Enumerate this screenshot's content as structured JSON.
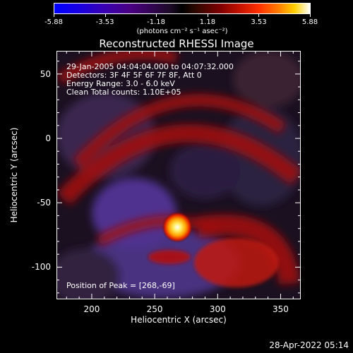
{
  "chart_data": {
    "type": "heatmap",
    "title": "Reconstructed RHESSI Image",
    "colorbar": {
      "ticks": [
        "-5.88",
        "-3.53",
        "-1.18",
        "1.18",
        "3.53",
        "5.88"
      ],
      "values": [
        -5.88,
        -3.53,
        -1.18,
        1.18,
        3.53,
        5.88
      ],
      "unit_label": "(photons cm⁻² s⁻¹ asec⁻²)"
    },
    "xlabel": "Heliocentric X (arcsec)",
    "ylabel": "Heliocentric Y (arcsec)",
    "xlim": [
      172,
      366
    ],
    "ylim": [
      -125,
      68
    ],
    "xticks": [
      200,
      250,
      300,
      350
    ],
    "xtick_labels": [
      "200",
      "250",
      "300",
      "350"
    ],
    "yticks": [
      50,
      0,
      -50,
      -100
    ],
    "ytick_labels": [
      "50",
      "0",
      "-50",
      "-100"
    ],
    "annotations": {
      "time_range": "29-Jan-2005 04:04:04.000 to 04:07:32.000",
      "detectors": "Detectors: 3F 4F 5F 6F 7F 8F, Att 0",
      "energy": "Energy Range: 3.0 - 6.0 keV",
      "clean": "Clean    Total counts: 1.10E+05",
      "peak_position": "Position of Peak = [268,-69]"
    },
    "peak": {
      "x": 268,
      "y": -69
    },
    "grid": false
  },
  "footer": {
    "timestamp": "28-Apr-2022 05:14"
  }
}
